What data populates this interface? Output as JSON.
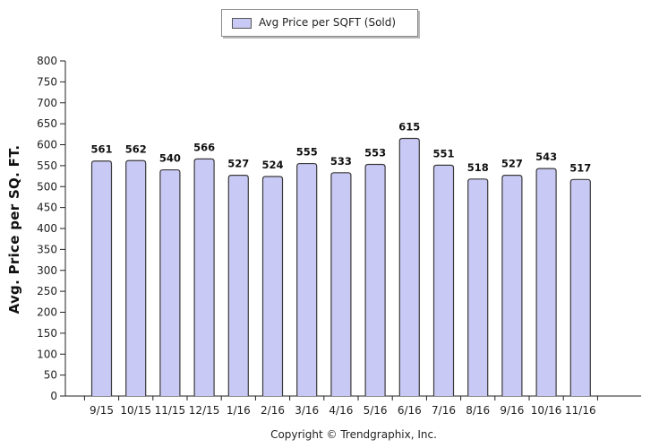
{
  "legend": {
    "label": "Avg Price per SQFT (Sold)"
  },
  "copyright": "Copyright © Trendgraphix, Inc.",
  "colors": {
    "bar_fill": "#c9c9f5",
    "bar_stroke": "#3a3a3a",
    "axis": "#222222"
  },
  "chart_data": {
    "type": "bar",
    "title": "",
    "xlabel": "",
    "ylabel": "Avg. Price per SQ. FT.",
    "ylim": [
      0,
      800
    ],
    "yticks": [
      0,
      50,
      100,
      150,
      200,
      250,
      300,
      350,
      400,
      450,
      500,
      550,
      600,
      650,
      700,
      750,
      800
    ],
    "grid": false,
    "legend_position": "top-center",
    "categories": [
      "9/15",
      "10/15",
      "11/15",
      "12/15",
      "1/16",
      "2/16",
      "3/16",
      "4/16",
      "5/16",
      "6/16",
      "7/16",
      "8/16",
      "9/16",
      "10/16",
      "11/16"
    ],
    "series": [
      {
        "name": "Avg Price per SQFT (Sold)",
        "values": [
          561,
          562,
          540,
          566,
          527,
          524,
          555,
          533,
          553,
          615,
          551,
          518,
          527,
          543,
          517
        ]
      }
    ]
  }
}
